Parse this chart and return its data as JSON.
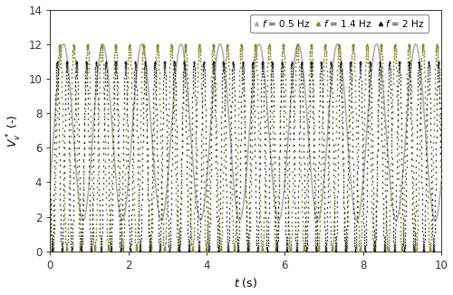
{
  "xlabel": "$t$ (s)",
  "ylabel": "$V_v^*$ (-)",
  "xlim": [
    0,
    10
  ],
  "ylim": [
    0,
    14
  ],
  "yticks": [
    0,
    2,
    4,
    6,
    8,
    10,
    12,
    14
  ],
  "xticks": [
    0,
    2,
    4,
    6,
    8,
    10
  ],
  "freq_05": {
    "freq": 0.5,
    "label": "$f$ = 0.5 Hz",
    "color": "#b0b0b0",
    "linewidth": 1.2,
    "max_val": 12.0,
    "min_val": 1.8,
    "phase_t0_val": 4.0,
    "descending_at_t0": false
  },
  "freq_14": {
    "freq": 1.4,
    "label": "$f$ = 1.4 Hz",
    "color": "#888830",
    "markersize": 1.8,
    "max_val": 12.0,
    "min_val": 0.0,
    "phase_t0_val": 3.5,
    "descending_at_t0": true,
    "n_points": 2800
  },
  "freq_2": {
    "freq": 2.0,
    "label": "$f$ = 2 Hz",
    "color": "#1a1a1a",
    "markersize": 1.5,
    "max_val": 11.0,
    "min_val": 0.0,
    "phase_t0_val": 4.0,
    "descending_at_t0": true,
    "n_points": 4000
  },
  "legend_marker_color_05": "#b0b0b0",
  "background_color": "#ffffff",
  "legend_fontsize": 7.5,
  "axis_fontsize": 9,
  "tick_fontsize": 8.5
}
